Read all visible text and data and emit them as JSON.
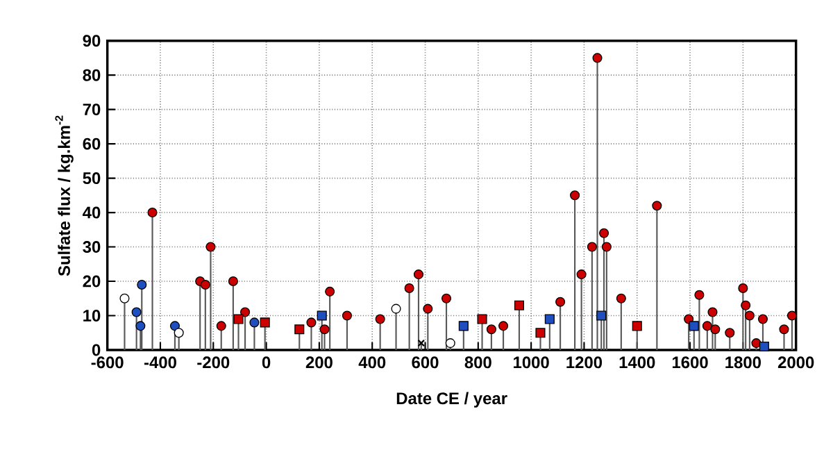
{
  "chart_data": {
    "type": "lollipop",
    "xlabel": "Date CE / year",
    "ylabel": "Sulfate flux / kg.km$^{-2}$",
    "xlim": [
      -600,
      2000
    ],
    "ylim": [
      0,
      90
    ],
    "xticks": [
      -600,
      -400,
      -200,
      0,
      200,
      400,
      600,
      800,
      1000,
      1200,
      1400,
      1600,
      1800,
      2000
    ],
    "yticks": [
      0,
      10,
      20,
      30,
      40,
      50,
      60,
      70,
      80,
      90
    ],
    "grid": true,
    "series": [
      {
        "color": "#cc0000",
        "marker": "circle",
        "x": [
          -430,
          -250,
          -230,
          -210,
          -170,
          -125,
          -80,
          170,
          220,
          240,
          305,
          430,
          540,
          575,
          610,
          680,
          850,
          895,
          1110,
          1165,
          1190,
          1230,
          1250,
          1275,
          1285,
          1340,
          1475,
          1595,
          1635,
          1665,
          1685,
          1695,
          1750,
          1800,
          1810,
          1825,
          1850,
          1875,
          1955,
          1985
        ],
        "values": [
          40,
          20,
          19,
          30,
          7,
          20,
          11,
          8,
          6,
          17,
          10,
          9,
          18,
          22,
          12,
          15,
          6,
          7,
          14,
          45,
          22,
          30,
          85,
          34,
          30,
          15,
          42,
          9,
          16,
          7,
          11,
          6,
          5,
          18,
          13,
          10,
          2,
          9,
          6,
          10
        ]
      },
      {
        "color": "#cc0000",
        "marker": "square",
        "x": [
          -105,
          -5,
          125,
          815,
          955,
          1035,
          1400
        ],
        "values": [
          9,
          8,
          6,
          9,
          13,
          5,
          7
        ]
      },
      {
        "color": "#1f4fbf",
        "marker": "circle",
        "x": [
          -490,
          -470,
          -475,
          -345,
          -45
        ],
        "values": [
          11,
          19,
          7,
          7,
          8
        ]
      },
      {
        "color": "#1f4fbf",
        "marker": "square",
        "x": [
          210,
          745,
          1070,
          1265,
          1615,
          1880
        ],
        "values": [
          10,
          7,
          9,
          10,
          7,
          1
        ]
      },
      {
        "color": "#ffffff",
        "marker": "circle",
        "x": [
          -535,
          -330,
          490,
          695
        ],
        "values": [
          15,
          5,
          12,
          2
        ]
      },
      {
        "color": "#000000",
        "marker": "cross",
        "x": [
          585
        ],
        "values": [
          2
        ]
      }
    ]
  }
}
